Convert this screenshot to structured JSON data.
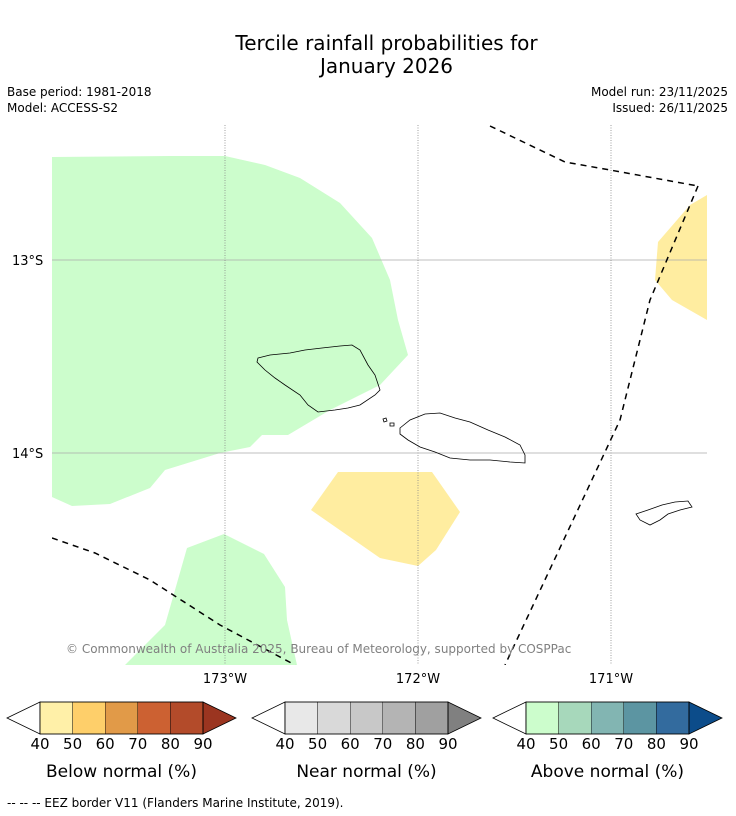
{
  "title_line1": "Tercile rainfall probabilities for",
  "title_line2": "January 2026",
  "base_period": "Base period: 1981-2018",
  "model": "Model: ACCESS-S2",
  "model_run": "Model run: 23/11/2025",
  "issued": "Issued: 26/11/2025",
  "copyright": "© Commonwealth of Australia 2025, Bureau of Meteorology, supported by COSPPac",
  "lat_labels": [
    "13°S",
    "14°S"
  ],
  "lon_labels": [
    "173°W",
    "172°W",
    "171°W"
  ],
  "footer": "--  --  -- EEZ border V11 (Flanders Marine Institute, 2019).",
  "colorbars": [
    {
      "name": "Below normal (%)",
      "ticks": [
        "40",
        "50",
        "60",
        "70",
        "80",
        "90"
      ],
      "colors": [
        "#fff0a8",
        "#fecf6a",
        "#e19a48",
        "#cc6132",
        "#b34b2a",
        "#9b3520"
      ]
    },
    {
      "name": "Near normal (%)",
      "ticks": [
        "40",
        "50",
        "60",
        "70",
        "80",
        "90"
      ],
      "colors": [
        "#e8e8e8",
        "#d9d9d9",
        "#c8c8c8",
        "#b4b4b4",
        "#a0a0a0",
        "#808080"
      ]
    },
    {
      "name": "Above normal (%)",
      "ticks": [
        "40",
        "50",
        "60",
        "70",
        "80",
        "90"
      ],
      "colors": [
        "#ccfdcc",
        "#a7d8bb",
        "#82b5b2",
        "#5c95a2",
        "#336b9e",
        "#0c4c8a"
      ]
    }
  ],
  "colors": {
    "above_normal_40_50": "#ccfdcc",
    "below_normal_40_50": "#ffeda0",
    "gridline": "#aaaaaa",
    "copyright": "#808080"
  }
}
